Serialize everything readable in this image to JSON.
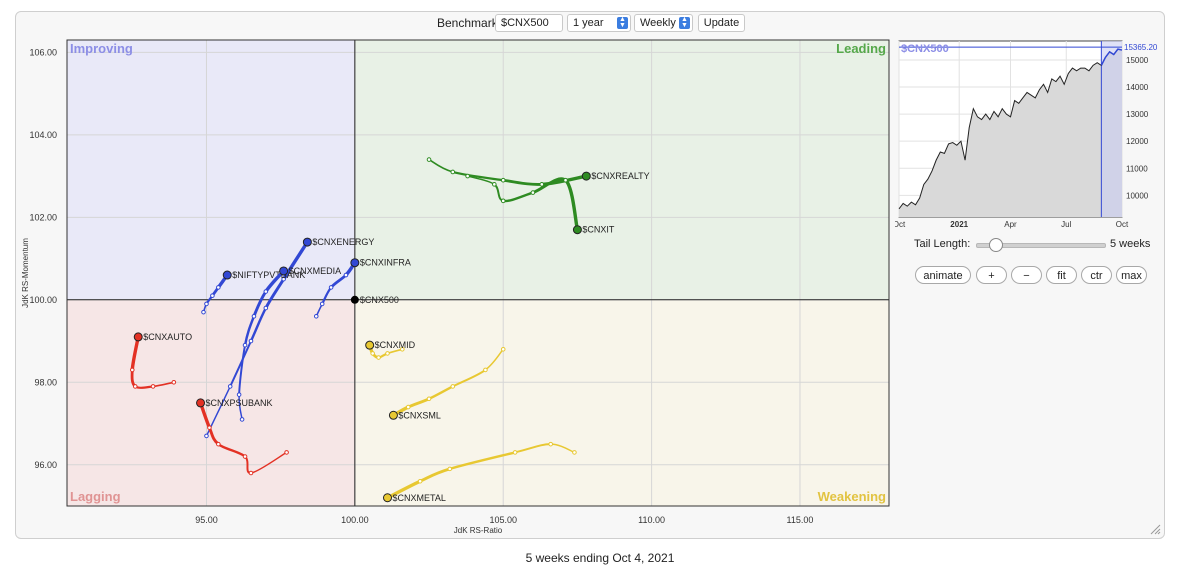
{
  "controls": {
    "benchmark_label": "Benchmark:",
    "benchmark_value": "$CNX500",
    "period": "1 year",
    "frequency": "Weekly",
    "update_label": "Update"
  },
  "side": {
    "tail_label": "Tail Length:",
    "tail_value": "5 weeks",
    "buttons": [
      "animate",
      "+",
      "−",
      "fit",
      "ctr",
      "max"
    ]
  },
  "footer": "5 weeks ending Oct 4, 2021",
  "colors": {
    "green": "#2e8b22",
    "yellow": "#e8c832",
    "red": "#e33124",
    "blue": "#3248d4",
    "benchmark": "#000000"
  },
  "chart_data": [
    {
      "type": "scatter",
      "title": "",
      "xlabel": "JdK RS-Ratio",
      "ylabel": "JdK RS-Momentum",
      "xlim": [
        90.3,
        118
      ],
      "ylim": [
        95,
        106.3
      ],
      "x_ticks": [
        "95.00",
        "100.00",
        "105.00",
        "110.00",
        "115.00"
      ],
      "y_ticks": [
        "96.00",
        "98.00",
        "100.00",
        "102.00",
        "104.00",
        "106.00"
      ],
      "center": [
        100,
        100
      ],
      "grid": true,
      "quadrants": [
        {
          "name": "Improving",
          "position": "top-left",
          "color": "#e9e9f8",
          "label_color": "#8c8ee6"
        },
        {
          "name": "Leading",
          "position": "top-right",
          "color": "#e8f1e6",
          "label_color": "#55a84a"
        },
        {
          "name": "Lagging",
          "position": "bottom-left",
          "color": "#f6e6e6",
          "label_color": "#e09393"
        },
        {
          "name": "Weakening",
          "position": "bottom-right",
          "color": "#f8f5ea",
          "label_color": "#e2c341"
        }
      ],
      "benchmark": {
        "name": "$CNX500",
        "x": 100.0,
        "y": 100.0
      },
      "series": [
        {
          "name": "$CNXREALTY",
          "color": "green",
          "points": [
            [
              102.5,
              103.4
            ],
            [
              103.3,
              103.1
            ],
            [
              105.0,
              102.9
            ],
            [
              106.3,
              102.8
            ],
            [
              107.8,
              103.0
            ]
          ]
        },
        {
          "name": "$CNXIT",
          "color": "green",
          "points": [
            [
              103.8,
              103.0
            ],
            [
              104.7,
              102.8
            ],
            [
              105.0,
              102.4
            ],
            [
              106.0,
              102.6
            ],
            [
              107.1,
              102.9
            ],
            [
              107.5,
              101.7
            ]
          ]
        },
        {
          "name": "$CNXENERGY",
          "color": "blue",
          "points": [
            [
              95.0,
              96.7
            ],
            [
              95.8,
              97.9
            ],
            [
              96.5,
              99.0
            ],
            [
              97.0,
              99.8
            ],
            [
              97.6,
              100.5
            ],
            [
              98.4,
              101.4
            ]
          ]
        },
        {
          "name": "$NIFTYPVTBANK",
          "color": "blue",
          "points": [
            [
              94.9,
              99.7
            ],
            [
              95.0,
              99.9
            ],
            [
              95.2,
              100.1
            ],
            [
              95.4,
              100.3
            ],
            [
              95.7,
              100.6
            ]
          ]
        },
        {
          "name": "$CNXMEDIA",
          "color": "blue",
          "points": [
            [
              96.2,
              97.1
            ],
            [
              96.1,
              97.7
            ],
            [
              96.3,
              98.9
            ],
            [
              96.6,
              99.6
            ],
            [
              97.0,
              100.2
            ],
            [
              97.6,
              100.7
            ]
          ]
        },
        {
          "name": "$CNXINFRA",
          "color": "blue",
          "points": [
            [
              98.7,
              99.6
            ],
            [
              98.9,
              99.9
            ],
            [
              99.2,
              100.3
            ],
            [
              99.7,
              100.6
            ],
            [
              100.0,
              100.9
            ]
          ]
        },
        {
          "name": "$CNXAUTO",
          "color": "red",
          "points": [
            [
              93.9,
              98.0
            ],
            [
              93.2,
              97.9
            ],
            [
              92.6,
              97.9
            ],
            [
              92.5,
              98.3
            ],
            [
              92.7,
              99.1
            ]
          ]
        },
        {
          "name": "$CNXPSUBANK",
          "color": "red",
          "points": [
            [
              97.7,
              96.3
            ],
            [
              96.5,
              95.8
            ],
            [
              96.3,
              96.2
            ],
            [
              95.4,
              96.5
            ],
            [
              95.1,
              96.9
            ],
            [
              94.8,
              97.5
            ]
          ]
        },
        {
          "name": "$CNXMID",
          "color": "yellow",
          "points": [
            [
              101.6,
              98.8
            ],
            [
              101.1,
              98.7
            ],
            [
              100.8,
              98.6
            ],
            [
              100.6,
              98.7
            ],
            [
              100.5,
              98.9
            ]
          ]
        },
        {
          "name": "$CNXSML",
          "color": "yellow",
          "points": [
            [
              105.0,
              98.8
            ],
            [
              104.4,
              98.3
            ],
            [
              103.3,
              97.9
            ],
            [
              102.5,
              97.6
            ],
            [
              101.8,
              97.4
            ],
            [
              101.3,
              97.2
            ]
          ]
        },
        {
          "name": "$CNXMETAL",
          "color": "yellow",
          "points": [
            [
              107.4,
              96.3
            ],
            [
              106.6,
              96.5
            ],
            [
              105.4,
              96.3
            ],
            [
              103.2,
              95.9
            ],
            [
              102.2,
              95.6
            ],
            [
              101.1,
              95.2
            ]
          ]
        }
      ]
    },
    {
      "type": "area",
      "title": "$CNX500",
      "x_ticks": [
        "Oct",
        "2021",
        "Apr",
        "Jul",
        "Oct"
      ],
      "y_ticks": [
        "10000",
        "11000",
        "12000",
        "13000",
        "14000",
        "15000"
      ],
      "ylim": [
        9200,
        15700
      ],
      "last_value": "15365.20",
      "values": [
        9500,
        9700,
        9600,
        9750,
        9650,
        9900,
        10400,
        10600,
        10900,
        11300,
        11600,
        11550,
        11900,
        11950,
        11850,
        12000,
        11300,
        12500,
        13200,
        12900,
        12800,
        13000,
        12800,
        13100,
        12900,
        13200,
        13000,
        12900,
        13500,
        13400,
        13600,
        13800,
        13700,
        13600,
        13900,
        14100,
        13800,
        14300,
        14200,
        14400,
        14100,
        14500,
        14700,
        14600,
        14700,
        14700,
        14600,
        14800,
        14900,
        14800,
        15100,
        15300,
        15200,
        15400,
        15365.2
      ]
    }
  ]
}
